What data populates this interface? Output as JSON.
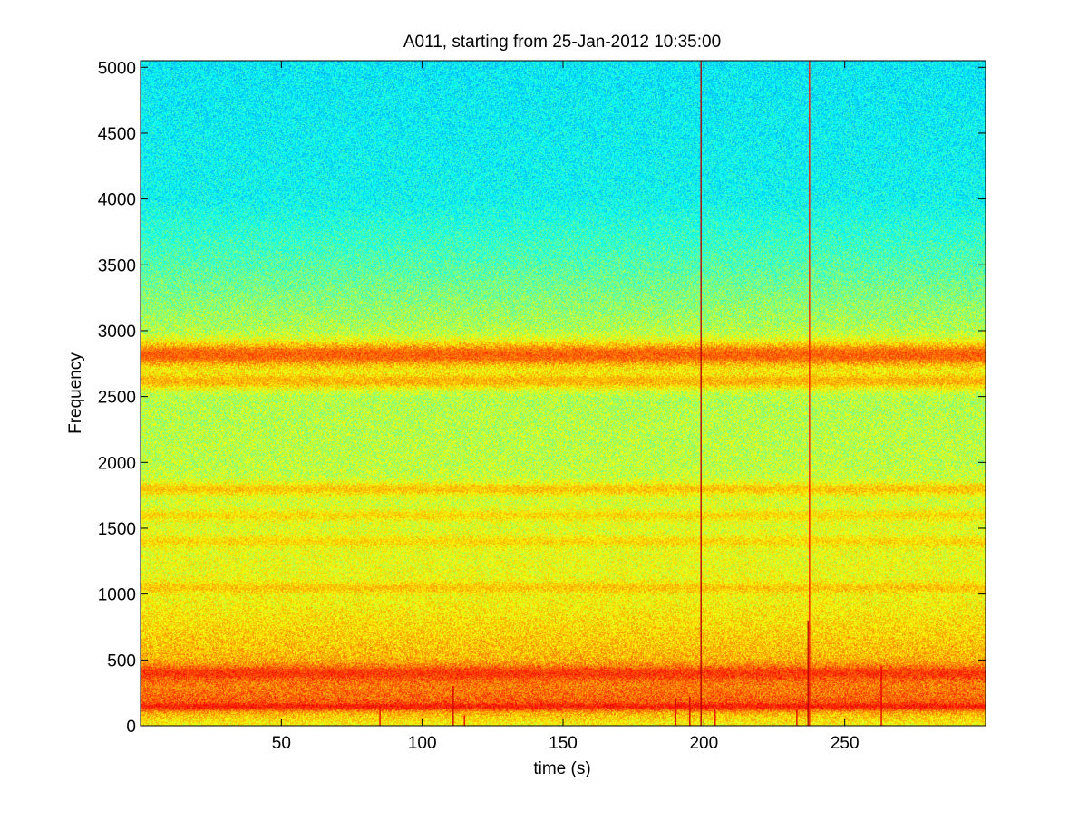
{
  "chart_data": {
    "type": "heatmap",
    "title": "A011, starting from 25-Jan-2012 10:35:00",
    "xlabel": "time (s)",
    "ylabel": "Frequency",
    "xlim": [
      0,
      300
    ],
    "ylim": [
      0,
      5050
    ],
    "xticks": [
      50,
      100,
      150,
      200,
      250
    ],
    "yticks": [
      0,
      500,
      1000,
      1500,
      2000,
      2500,
      3000,
      3500,
      4000,
      4500,
      5000
    ],
    "colormap": "jet",
    "grid": false,
    "legend": "none",
    "background_level_by_frequency": [
      {
        "freq": 0,
        "level": 0.62
      },
      {
        "freq": 200,
        "level": 0.78
      },
      {
        "freq": 500,
        "level": 0.7
      },
      {
        "freq": 1000,
        "level": 0.62
      },
      {
        "freq": 1500,
        "level": 0.6
      },
      {
        "freq": 2000,
        "level": 0.56
      },
      {
        "freq": 2500,
        "level": 0.55
      },
      {
        "freq": 2800,
        "level": 0.62
      },
      {
        "freq": 3000,
        "level": 0.55
      },
      {
        "freq": 3500,
        "level": 0.46
      },
      {
        "freq": 4000,
        "level": 0.38
      },
      {
        "freq": 5050,
        "level": 0.36
      }
    ],
    "horizontal_bands": [
      {
        "freq": 2820,
        "level": 0.78,
        "width_hz": 90
      },
      {
        "freq": 2620,
        "level": 0.7,
        "width_hz": 60
      },
      {
        "freq": 1800,
        "level": 0.68,
        "width_hz": 50
      },
      {
        "freq": 1600,
        "level": 0.66,
        "width_hz": 40
      },
      {
        "freq": 1400,
        "level": 0.66,
        "width_hz": 40
      },
      {
        "freq": 1050,
        "level": 0.68,
        "width_hz": 40
      },
      {
        "freq": 400,
        "level": 0.82,
        "width_hz": 60
      },
      {
        "freq": 150,
        "level": 0.85,
        "width_hz": 30
      }
    ],
    "vertical_events": [
      {
        "time": 199,
        "max_freq": 5050,
        "level": 0.95
      },
      {
        "time": 237.5,
        "max_freq": 5050,
        "level": 0.85
      },
      {
        "time": 237,
        "max_freq": 800,
        "level": 0.95
      },
      {
        "time": 111,
        "max_freq": 300,
        "level": 0.92
      },
      {
        "time": 263,
        "max_freq": 450,
        "level": 0.9
      },
      {
        "time": 190,
        "max_freq": 200,
        "level": 0.92
      },
      {
        "time": 195,
        "max_freq": 220,
        "level": 0.92
      },
      {
        "time": 85,
        "max_freq": 150,
        "level": 0.9
      },
      {
        "time": 115,
        "max_freq": 80,
        "level": 0.9
      },
      {
        "time": 204,
        "max_freq": 120,
        "level": 0.9
      },
      {
        "time": 233,
        "max_freq": 120,
        "level": 0.9
      }
    ]
  }
}
